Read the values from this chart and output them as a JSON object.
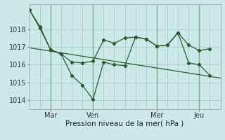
{
  "background_color": "#cce8e8",
  "grid_color": "#aacccc",
  "line_color": "#2d5a2d",
  "xlabel": "Pression niveau de la mer( hPa )",
  "ylim": [
    1013.5,
    1019.4
  ],
  "xlim": [
    0,
    108
  ],
  "yticks": [
    1014,
    1015,
    1016,
    1017,
    1018
  ],
  "xtick_positions": [
    12,
    36,
    72,
    96
  ],
  "xtick_labels": [
    "Mar",
    "Ven",
    "Mer",
    "Jeu"
  ],
  "vlines": [
    12,
    36,
    72,
    96
  ],
  "series1_x": [
    0,
    6,
    12,
    18,
    24,
    30,
    36,
    42,
    48,
    54,
    60,
    66,
    72,
    78,
    84,
    90,
    96,
    102
  ],
  "series1_y": [
    1019.1,
    1018.15,
    1016.85,
    1016.6,
    1015.4,
    1014.85,
    1014.05,
    1016.15,
    1016.0,
    1015.95,
    1017.55,
    1017.45,
    1017.05,
    1017.1,
    1017.8,
    1016.1,
    1016.0,
    1015.4
  ],
  "series2_x": [
    0,
    6,
    12,
    18,
    24,
    30,
    36,
    42,
    48,
    54,
    60,
    66,
    72,
    78,
    84,
    90,
    96,
    102
  ],
  "series2_y": [
    1019.1,
    1018.05,
    1016.85,
    1016.6,
    1016.15,
    1016.1,
    1016.2,
    1017.4,
    1017.2,
    1017.5,
    1017.55,
    1017.45,
    1017.05,
    1017.1,
    1017.8,
    1017.1,
    1016.8,
    1016.9
  ],
  "series3_x": [
    0,
    108
  ],
  "series3_y": [
    1016.95,
    1015.25
  ]
}
